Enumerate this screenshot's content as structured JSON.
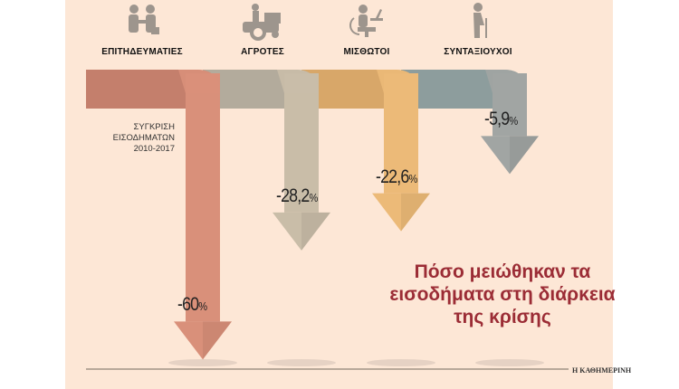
{
  "chart_data": {
    "type": "bar",
    "title": "Πόσο μειώθηκαν τα εισοδήματα στη διάρκεια της κρίσης",
    "subtitle": [
      "ΣΥΓΚΡΙΣΗ",
      "ΕΙΣΟΔΗΜΑΤΩΝ",
      "2010-2017"
    ],
    "unit": "%",
    "categories": [
      "ΕΠΙΤΗΔΕΥΜΑΤΙΕΣ",
      "ΑΓΡΟΤΕΣ",
      "ΜΙΣΘΩΤΟΙ",
      "ΣΥΝΤΑΞΙΟΥΧΟΙ"
    ],
    "values": [
      -60,
      -28.2,
      -22.6,
      -5.9
    ],
    "value_labels": [
      "-60",
      "-28,2",
      "-22,6",
      "-5,9"
    ],
    "icons": [
      "handshake-icon",
      "tractor-icon",
      "office-worker-icon",
      "elderly-person-icon"
    ],
    "colors": {
      "band": [
        "#c47f6c",
        "#b3ab9c",
        "#d8a769",
        "#8d9d9d"
      ],
      "shaft": [
        "#d9907a",
        "#c9bda8",
        "#ecba78",
        "#a1a5a3"
      ],
      "title": "#9b2c35"
    },
    "source": "Η ΚΑΘΗΜΕΡΙΝΗ"
  }
}
